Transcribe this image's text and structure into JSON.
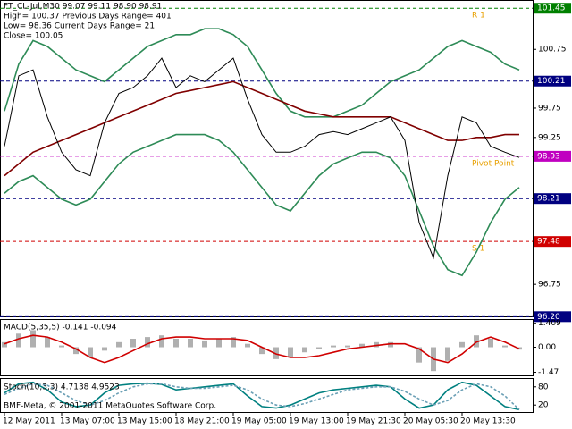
{
  "chart_data": [
    {
      "type": "line",
      "info": [
        "FT_CL-Jul,M30  99.07 99.11 98.90 98.91",
        "High= 100.37    Previous Days Range= 401",
        "Low= 98.36    Current Days Range= 21",
        "Close= 100.05"
      ],
      "categories": [
        "12 May 2011",
        null,
        null,
        null,
        "13 May 07:00",
        null,
        null,
        null,
        "13 May 15:00",
        null,
        null,
        null,
        "18 May 21:00",
        null,
        null,
        null,
        "19 May 05:00",
        null,
        null,
        null,
        "19 May 13:00",
        null,
        null,
        null,
        "19 May 21:30",
        null,
        null,
        null,
        "20 May 05:30",
        null,
        null,
        null,
        "20 May 13:30",
        null,
        null,
        null,
        null
      ],
      "ylim": [
        96.22,
        101.56
      ],
      "yticks": [
        96.75,
        99.25,
        99.75,
        100.75
      ],
      "levels": [
        {
          "value": 101.45,
          "color": "#008000",
          "name": "R 1"
        },
        {
          "value": 100.21,
          "color": "#000080"
        },
        {
          "value": 98.93,
          "color": "#c000c0",
          "name": "Pivot Point"
        },
        {
          "value": 98.21,
          "color": "#000080"
        },
        {
          "value": 97.48,
          "color": "#d00000",
          "name": "S 1"
        },
        {
          "value": 96.2,
          "label": "96.20",
          "color": "#000080"
        }
      ],
      "series": [
        {
          "type": "line",
          "color": "#2e8b57",
          "values": [
            99.7,
            100.5,
            100.9,
            100.8,
            100.6,
            100.4,
            100.3,
            100.2,
            100.4,
            100.6,
            100.8,
            100.9,
            101.0,
            101.0,
            101.1,
            101.1,
            101.0,
            100.8,
            100.4,
            100.0,
            99.7,
            99.6,
            99.6,
            99.6,
            99.7,
            99.8,
            100.0,
            100.2,
            100.3,
            100.4,
            100.6,
            100.8,
            100.9,
            100.8,
            100.7,
            100.5,
            100.4
          ]
        },
        {
          "type": "line",
          "color": "#2e8b57",
          "values": [
            98.3,
            98.5,
            98.6,
            98.4,
            98.2,
            98.1,
            98.2,
            98.5,
            98.8,
            99.0,
            99.1,
            99.2,
            99.3,
            99.3,
            99.3,
            99.2,
            99.0,
            98.7,
            98.4,
            98.1,
            98.0,
            98.3,
            98.6,
            98.8,
            98.9,
            99.0,
            99.0,
            98.9,
            98.6,
            98.0,
            97.4,
            97.0,
            96.9,
            97.3,
            97.8,
            98.2,
            98.4
          ]
        },
        {
          "type": "line",
          "color": "#800000",
          "values": [
            98.6,
            98.8,
            99.0,
            99.1,
            99.2,
            99.3,
            99.4,
            99.5,
            99.6,
            99.7,
            99.8,
            99.9,
            100.0,
            100.05,
            100.1,
            100.15,
            100.2,
            100.1,
            100.0,
            99.9,
            99.8,
            99.7,
            99.65,
            99.6,
            99.6,
            99.6,
            99.6,
            99.6,
            99.5,
            99.4,
            99.3,
            99.2,
            99.2,
            99.25,
            99.25,
            99.3,
            99.3
          ]
        },
        {
          "type": "line",
          "color": "#000000",
          "values": [
            99.1,
            100.3,
            100.4,
            99.6,
            99.0,
            98.7,
            98.6,
            99.5,
            100.0,
            100.1,
            100.3,
            100.6,
            100.1,
            100.3,
            100.2,
            100.4,
            100.6,
            99.9,
            99.3,
            99.0,
            99.0,
            99.1,
            99.3,
            99.35,
            99.3,
            99.4,
            99.5,
            99.6,
            99.2,
            97.8,
            97.2,
            98.6,
            99.6,
            99.5,
            99.1,
            99.0,
            98.91
          ]
        }
      ]
    },
    {
      "type": "bar",
      "label": "MACD(5,35,5) -0.141 -0.094",
      "ylim": [
        -1.6,
        1.55
      ],
      "yticks": [
        1.409,
        {
          "value": 0,
          "label": "0.00"
        },
        -1.47
      ],
      "series": [
        {
          "type": "bar",
          "color": "#b0b0b0",
          "values": [
            0.3,
            0.8,
            1.0,
            0.6,
            0.1,
            -0.4,
            -0.6,
            -0.2,
            0.3,
            0.5,
            0.6,
            0.7,
            0.5,
            0.5,
            0.4,
            0.5,
            0.6,
            0.2,
            -0.4,
            -0.7,
            -0.6,
            -0.3,
            -0.1,
            0.1,
            0.1,
            0.2,
            0.3,
            0.3,
            0.0,
            -0.9,
            -1.4,
            -0.8,
            0.3,
            0.7,
            0.5,
            0.1,
            -0.141
          ]
        },
        {
          "type": "line",
          "color": "#d00000",
          "values": [
            0.2,
            0.5,
            0.7,
            0.6,
            0.3,
            -0.1,
            -0.6,
            -0.9,
            -0.6,
            -0.2,
            0.2,
            0.5,
            0.6,
            0.6,
            0.5,
            0.5,
            0.5,
            0.4,
            0.0,
            -0.4,
            -0.6,
            -0.6,
            -0.5,
            -0.3,
            -0.1,
            0.0,
            0.1,
            0.2,
            0.2,
            -0.1,
            -0.7,
            -0.9,
            -0.4,
            0.3,
            0.6,
            0.3,
            -0.094
          ]
        }
      ]
    },
    {
      "type": "line",
      "label": "Stoch(10,3,3) 4.7138 4.9523",
      "footer": "BMF-Meta, © 2001-2011 MetaQuotes Software Corp.",
      "ylim": [
        0,
        100
      ],
      "yticks": [
        20,
        80
      ],
      "series": [
        {
          "type": "line",
          "color": "#008080",
          "values": [
            60,
            90,
            95,
            70,
            30,
            15,
            20,
            60,
            85,
            90,
            92,
            88,
            70,
            75,
            80,
            85,
            90,
            50,
            15,
            10,
            20,
            40,
            60,
            70,
            75,
            80,
            85,
            80,
            40,
            10,
            20,
            70,
            95,
            85,
            50,
            15,
            4.7138
          ]
        },
        {
          "type": "line",
          "color": "#6a9fb5",
          "dash": true,
          "values": [
            55,
            75,
            90,
            85,
            60,
            35,
            20,
            35,
            60,
            80,
            90,
            90,
            80,
            75,
            75,
            80,
            85,
            70,
            40,
            20,
            15,
            25,
            40,
            55,
            70,
            75,
            80,
            80,
            65,
            40,
            20,
            35,
            70,
            90,
            80,
            50,
            4.9523
          ]
        }
      ]
    }
  ]
}
